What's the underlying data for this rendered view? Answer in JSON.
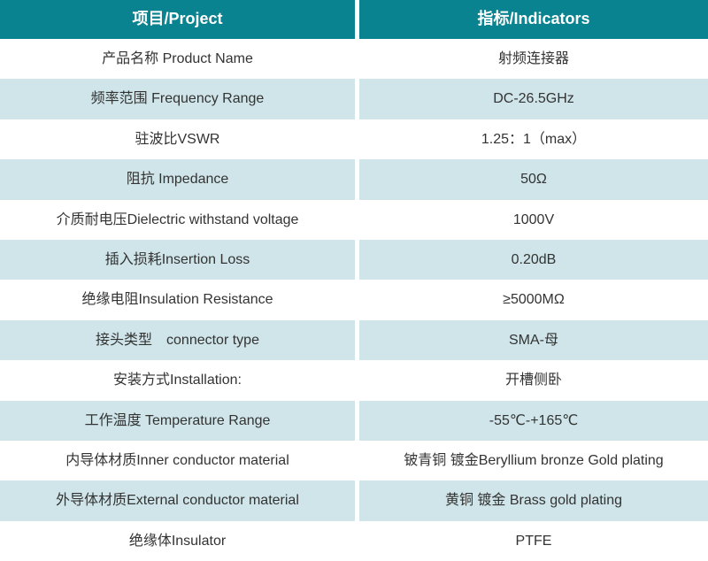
{
  "table": {
    "header": {
      "project": "项目/Project",
      "indicators": "指标/Indicators"
    },
    "rows": [
      {
        "project": "产品名称 Product Name",
        "indicator": "射频连接器"
      },
      {
        "project": "频率范围 Frequency Range",
        "indicator": "DC-26.5GHz"
      },
      {
        "project": "驻波比VSWR",
        "indicator": "1.25：1（max）"
      },
      {
        "project": "阻抗 Impedance",
        "indicator": "50Ω"
      },
      {
        "project": "介质耐电压Dielectric withstand voltage",
        "indicator": "1000V"
      },
      {
        "project": "插入损耗Insertion Loss",
        "indicator": "0.20dB"
      },
      {
        "project": "绝缘电阻Insulation Resistance",
        "indicator": "≥5000MΩ"
      },
      {
        "project": "接头类型　connector type",
        "indicator": "SMA-母"
      },
      {
        "project": "安装方式Installation:",
        "indicator": "开槽侧卧"
      },
      {
        "project": "工作温度 Temperature Range",
        "indicator": "-55℃-+165℃"
      },
      {
        "project": "内导体材质Inner conductor material",
        "indicator": "铍青铜 镀金Beryllium bronze Gold plating"
      },
      {
        "project": "外导体材质External conductor material",
        "indicator": "黄铜 镀金 Brass gold plating"
      },
      {
        "project": "绝缘体Insulator",
        "indicator": "PTFE"
      }
    ]
  },
  "colors": {
    "header_bg": "#08838F",
    "header_text": "#FFFFFF",
    "row_alt_bg": "#CFE5E9",
    "text": "#333333"
  }
}
